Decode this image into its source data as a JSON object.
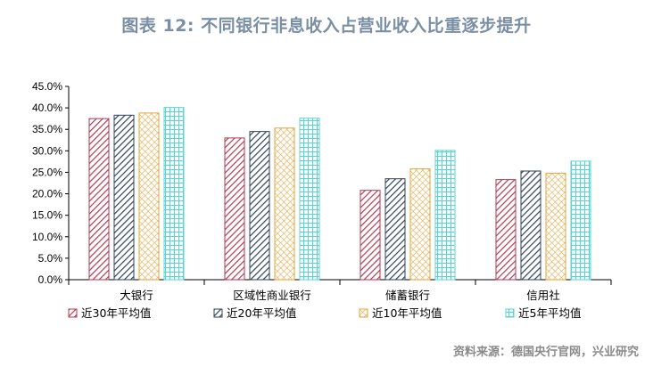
{
  "title": "图表 12: 不同银行非息收入占营业收入比重逐步提升",
  "source": "资料来源：德国央行官网，兴业研究",
  "chart_data": {
    "type": "bar",
    "categories": [
      "大银行",
      "区域性商业银行",
      "储蓄银行",
      "信用社"
    ],
    "series": [
      {
        "name": "近30年平均值",
        "values": [
          37.5,
          33.0,
          20.8,
          23.3
        ],
        "color": "#b03a52",
        "pattern": "diag-right"
      },
      {
        "name": "近20年平均值",
        "values": [
          38.3,
          34.5,
          23.5,
          25.3
        ],
        "color": "#2f4358",
        "pattern": "diag-right"
      },
      {
        "name": "近10年平均值",
        "values": [
          38.8,
          35.3,
          25.8,
          24.8
        ],
        "color": "#e3a43b",
        "pattern": "cross"
      },
      {
        "name": "近5年平均值",
        "values": [
          40.1,
          37.6,
          30.1,
          27.6
        ],
        "color": "#58d4d4",
        "pattern": "grid"
      }
    ],
    "yticks": [
      "0.0%",
      "5.0%",
      "10.0%",
      "15.0%",
      "20.0%",
      "25.0%",
      "30.0%",
      "35.0%",
      "40.0%",
      "45.0%"
    ],
    "ylim": [
      0,
      45
    ],
    "ylabel": "",
    "xlabel": "",
    "legend_position": "bottom"
  }
}
